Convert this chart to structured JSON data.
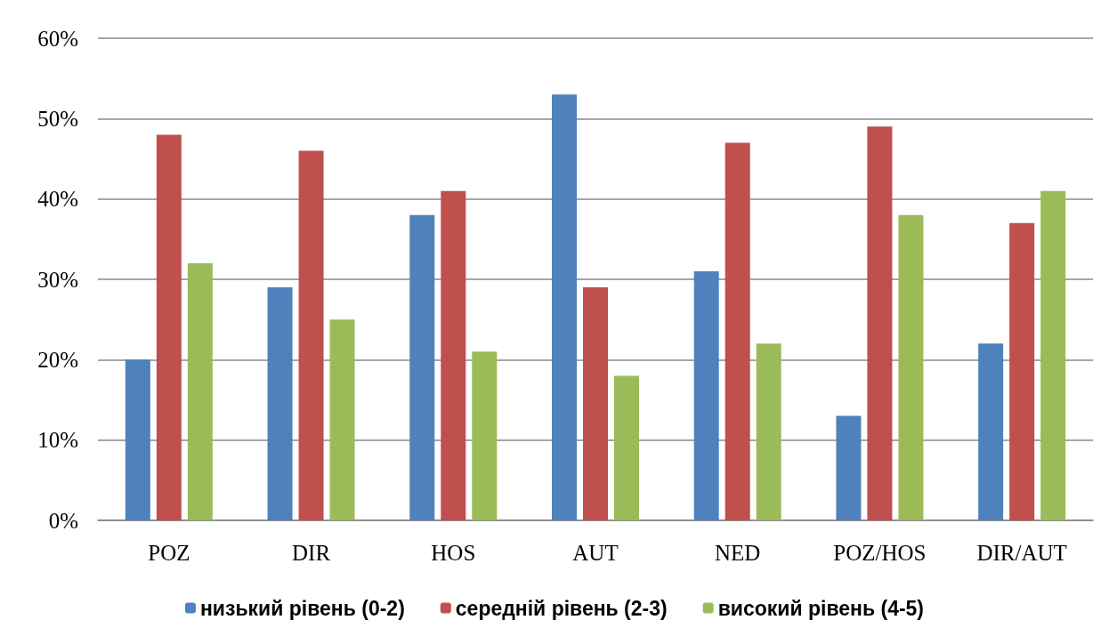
{
  "chart_data": {
    "type": "bar",
    "categories": [
      "POZ",
      "DIR",
      "HOS",
      "AUT",
      "NED",
      "POZ/HOS",
      "DIR/AUT"
    ],
    "series": [
      {
        "name": "низький рівень (0-2)",
        "color": "#4f81bd",
        "values": [
          20,
          29,
          38,
          53,
          31,
          13,
          22
        ]
      },
      {
        "name": "середній рівень (2-3)",
        "color": "#c0504d",
        "values": [
          48,
          46,
          41,
          29,
          47,
          49,
          37
        ]
      },
      {
        "name": "високий рівень (4-5)",
        "color": "#9bbb59",
        "values": [
          32,
          25,
          21,
          18,
          22,
          38,
          41
        ]
      }
    ],
    "ylim": [
      0,
      60
    ],
    "yticks": [
      {
        "value": 0,
        "label": "0%"
      },
      {
        "value": 10,
        "label": "10%"
      },
      {
        "value": 20,
        "label": "20%"
      },
      {
        "value": 30,
        "label": "30%"
      },
      {
        "value": 40,
        "label": "40%"
      },
      {
        "value": 50,
        "label": "50%"
      },
      {
        "value": 60,
        "label": "60%"
      }
    ],
    "grid": "y",
    "legend": "bottom"
  }
}
